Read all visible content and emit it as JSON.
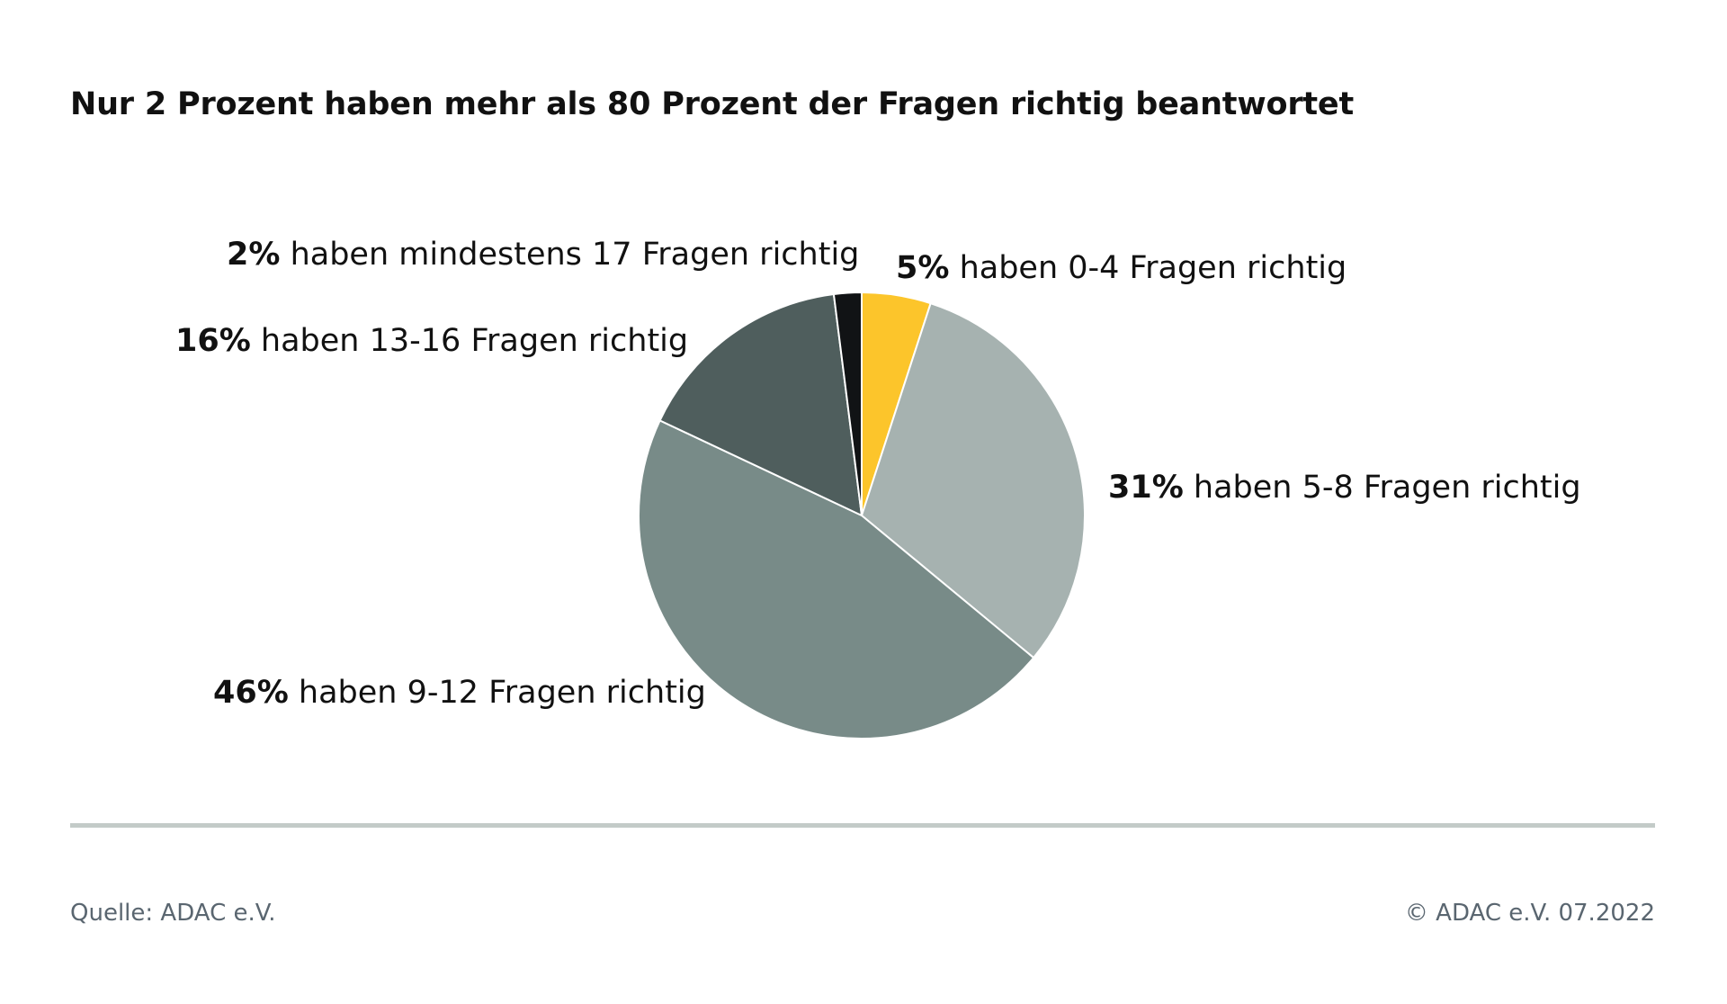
{
  "title": "Nur 2 Prozent haben mehr als 80 Prozent der Fragen richtig beantwortet",
  "chart_data": {
    "type": "pie",
    "title": "Nur 2 Prozent haben mehr als 80 Prozent der Fragen richtig beantwortet",
    "slices": [
      {
        "value": 5,
        "pct_label": "5%",
        "text": "haben 0-4 Fragen richtig",
        "color": "#fcc52b"
      },
      {
        "value": 31,
        "pct_label": "31%",
        "text": "haben 5-8 Fragen richtig",
        "color": "#a6b2b0"
      },
      {
        "value": 46,
        "pct_label": "46%",
        "text": "haben 9-12 Fragen richtig",
        "color": "#788b88"
      },
      {
        "value": 16,
        "pct_label": "16%",
        "text": "haben 13-16 Fragen richtig",
        "color": "#4f5e5d"
      },
      {
        "value": 2,
        "pct_label": "2%",
        "text": "haben mindestens 17 Fragen richtig",
        "color": "#111315"
      }
    ]
  },
  "footer": {
    "source": "Quelle: ADAC e.V.",
    "copyright": "© ADAC e.V. 07.2022"
  }
}
